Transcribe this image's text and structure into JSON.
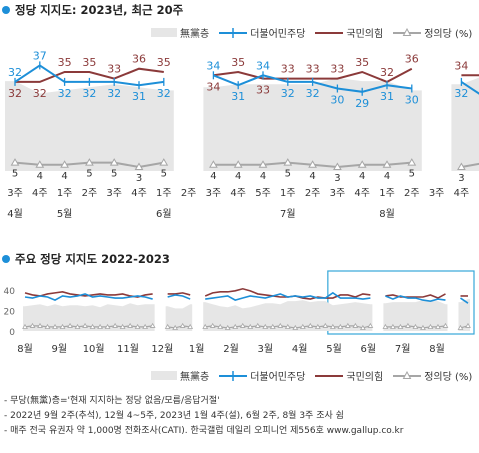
{
  "top": {
    "title": "정당 지지도: 2023년, 최근 20주",
    "legend": {
      "none": "無黨층",
      "dp": "더불어민주당",
      "ppp": "국민의힘",
      "jp": "정의당 (%)"
    }
  },
  "bottom": {
    "title": "주요 정당 지지도 2022-2023",
    "legend": {
      "none": "無黨층",
      "dp": "더불어민주당",
      "ppp": "국민의힘",
      "jp": "정의당 (%)"
    }
  },
  "notes": [
    "- 무당(無黨)층='현재 지지하는 정당 없음/모름/응답거절'",
    "- 2022년 9월 2주(추석), 12월 4~5주, 2023년 1월 4주(설), 6월 2주, 8월 3주 조사 쉼",
    "- 매주 전국 유권자 약 1,000명 전화조사(CATI). 한국갤럽 데일리 오피니언 제556호 www.gallup.co.kr"
  ],
  "colors": {
    "dp": "#1d8fd8",
    "ppp": "#8b3a3a",
    "jp": "#a6a6a6",
    "none": "#e6e6e6",
    "accent": "#1d8fd8",
    "highlight_box": "#35a7d8"
  },
  "chart_data": [
    {
      "type": "line",
      "title": "정당 지지도: 2023년, 최근 20주",
      "categories": [
        "3주",
        "4주",
        "1주",
        "2주",
        "3주",
        "4주",
        "1주",
        "2주",
        "3주",
        "4주",
        "5주",
        "1주",
        "2주",
        "3주",
        "4주",
        "1주",
        "2주",
        "3주",
        "4주",
        "5주"
      ],
      "month_labels": [
        {
          "label": "4월",
          "index": 0
        },
        {
          "label": "5월",
          "index": 2
        },
        {
          "label": "6월",
          "index": 6
        },
        {
          "label": "7월",
          "index": 11
        },
        {
          "label": "8월",
          "index": 15
        }
      ],
      "series": [
        {
          "name": "더불어민주당",
          "key": "dp",
          "values": [
            32,
            37,
            32,
            32,
            32,
            31,
            32,
            null,
            34,
            31,
            34,
            32,
            32,
            30,
            29,
            31,
            30,
            null,
            32,
            27
          ]
        },
        {
          "name": "국민의힘",
          "key": "ppp",
          "values": [
            32,
            32,
            35,
            35,
            33,
            36,
            35,
            null,
            34,
            35,
            33,
            33,
            33,
            33,
            35,
            32,
            36,
            null,
            34,
            34
          ]
        },
        {
          "name": "정의당",
          "key": "jp",
          "values": [
            5,
            4,
            4,
            5,
            5,
            3,
            5,
            null,
            4,
            4,
            4,
            5,
            4,
            3,
            4,
            4,
            5,
            null,
            3,
            5
          ]
        },
        {
          "name": "無黨층",
          "key": "none",
          "values": [
            29,
            25,
            26,
            27,
            28,
            27,
            26,
            null,
            27,
            28,
            28,
            28,
            28,
            30,
            29,
            29,
            26,
            null,
            28,
            31
          ]
        }
      ],
      "ylim": [
        0,
        45
      ]
    },
    {
      "type": "line",
      "title": "주요 정당 지지도 2022-2023",
      "x_tick_labels": [
        "8월",
        "9월",
        "10월",
        "11월",
        "12월",
        "1월",
        "2월",
        "3월",
        "4월",
        "5월",
        "6월",
        "7월",
        "8월"
      ],
      "y_ticks": [
        0,
        20,
        40
      ],
      "ylim": [
        0,
        45
      ],
      "highlight": "최근 20주",
      "series": [
        {
          "name": "더불어민주당",
          "key": "dp",
          "values": [
            33,
            32,
            34,
            33,
            30,
            34,
            33,
            34,
            36,
            33,
            34,
            33,
            32,
            32,
            33,
            34,
            33,
            31,
            null,
            33,
            35,
            34,
            31,
            null,
            31,
            32,
            33,
            34,
            30,
            32,
            34,
            33,
            32,
            34,
            36,
            33,
            34,
            33,
            34,
            32,
            32,
            37,
            32,
            32,
            32,
            31,
            32,
            null,
            34,
            31,
            34,
            32,
            32,
            30,
            29,
            31,
            30,
            null,
            32,
            27
          ]
        },
        {
          "name": "국민의힘",
          "key": "ppp",
          "values": [
            37,
            35,
            34,
            36,
            37,
            38,
            36,
            35,
            34,
            35,
            36,
            35,
            35,
            36,
            34,
            33,
            35,
            36,
            null,
            36,
            36,
            37,
            35,
            null,
            34,
            37,
            38,
            38,
            39,
            41,
            39,
            36,
            35,
            34,
            33,
            33,
            34,
            32,
            31,
            33,
            32,
            32,
            35,
            35,
            33,
            36,
            35,
            null,
            34,
            35,
            33,
            33,
            33,
            33,
            35,
            32,
            36,
            null,
            34,
            34
          ]
        },
        {
          "name": "정의당",
          "key": "jp",
          "values": [
            4,
            5,
            5,
            4,
            4,
            4,
            5,
            4,
            5,
            4,
            4,
            4,
            5,
            4,
            5,
            4,
            4,
            5,
            null,
            4,
            3,
            5,
            4,
            null,
            4,
            5,
            4,
            3,
            4,
            5,
            4,
            5,
            4,
            4,
            5,
            4,
            3,
            4,
            5,
            4,
            5,
            4,
            4,
            5,
            5,
            3,
            5,
            null,
            4,
            4,
            4,
            5,
            4,
            3,
            4,
            4,
            5,
            null,
            3,
            5
          ]
        },
        {
          "name": "無黨층",
          "key": "none",
          "values": [
            24,
            25,
            26,
            24,
            26,
            24,
            25,
            25,
            24,
            25,
            23,
            26,
            25,
            24,
            27,
            25,
            26,
            26,
            null,
            24,
            22,
            22,
            26,
            null,
            28,
            26,
            24,
            23,
            25,
            22,
            23,
            25,
            27,
            27,
            26,
            29,
            29,
            30,
            28,
            29,
            29,
            25,
            26,
            27,
            28,
            27,
            26,
            null,
            27,
            28,
            28,
            28,
            28,
            30,
            29,
            29,
            26,
            null,
            28,
            31
          ]
        }
      ]
    }
  ]
}
